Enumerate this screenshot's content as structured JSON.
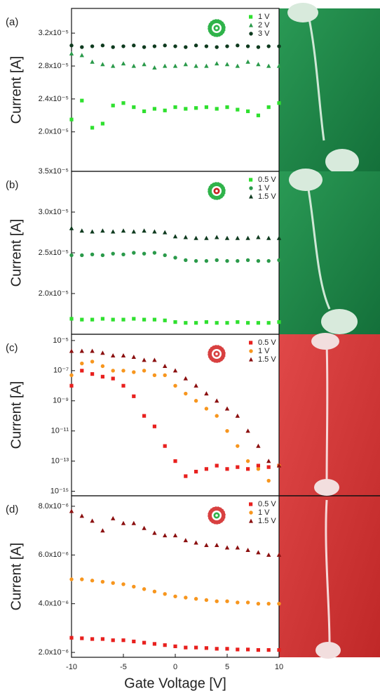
{
  "chart_data": [
    {
      "type": "scatter",
      "panel": "(a)",
      "ylabel": "Current [A]",
      "xlim": [
        -10,
        10
      ],
      "x": [
        -10,
        -9,
        -8,
        -7,
        -6,
        -5,
        -4,
        -3,
        -2,
        -1,
        0,
        1,
        2,
        3,
        4,
        5,
        6,
        7,
        8,
        9,
        10
      ],
      "ylim": [
        1.52e-05,
        3.5e-05
      ],
      "yticks": [
        {
          "value": 2e-05,
          "label": "2.0x10⁻⁵"
        },
        {
          "value": 2.4e-05,
          "label": "2.4x10⁻⁵"
        },
        {
          "value": 2.8e-05,
          "label": "2.8x10⁻⁵"
        },
        {
          "value": 3.2e-05,
          "label": "3.2x10⁻⁵"
        }
      ],
      "series": [
        {
          "name": "1 V",
          "color": "#2fe02f",
          "marker": "square",
          "values": [
            2.15e-05,
            2.38e-05,
            2.05e-05,
            2.1e-05,
            2.32e-05,
            2.35e-05,
            2.3e-05,
            2.25e-05,
            2.28e-05,
            2.26e-05,
            2.3e-05,
            2.28e-05,
            2.29e-05,
            2.3e-05,
            2.28e-05,
            2.3e-05,
            2.27e-05,
            2.25e-05,
            2.2e-05,
            2.3e-05,
            2.35e-05
          ]
        },
        {
          "name": "2 V",
          "color": "#2a9a4a",
          "marker": "triangle",
          "values": [
            2.95e-05,
            2.93e-05,
            2.85e-05,
            2.82e-05,
            2.8e-05,
            2.83e-05,
            2.8e-05,
            2.82e-05,
            2.78e-05,
            2.8e-05,
            2.8e-05,
            2.82e-05,
            2.8e-05,
            2.8e-05,
            2.83e-05,
            2.82e-05,
            2.8e-05,
            2.85e-05,
            2.82e-05,
            2.8e-05,
            2.8e-05
          ]
        },
        {
          "name": "3 V",
          "color": "#0e3a1e",
          "marker": "circle",
          "values": [
            3.05e-05,
            3.03e-05,
            3.04e-05,
            3.05e-05,
            3.03e-05,
            3.04e-05,
            3.05e-05,
            3.03e-05,
            3.04e-05,
            3.05e-05,
            3.04e-05,
            3.03e-05,
            3.05e-05,
            3.04e-05,
            3.03e-05,
            3.04e-05,
            3.05e-05,
            3.04e-05,
            3.03e-05,
            3.04e-05,
            3.04e-05
          ]
        }
      ]
    },
    {
      "type": "scatter",
      "panel": "(b)",
      "ylabel": "Current [A]",
      "xlim": [
        -10,
        10
      ],
      "x": [
        -10,
        -9,
        -8,
        -7,
        -6,
        -5,
        -4,
        -3,
        -2,
        -1,
        0,
        1,
        2,
        3,
        4,
        5,
        6,
        7,
        8,
        9,
        10
      ],
      "ylim": [
        1.5e-05,
        3.5e-05
      ],
      "yticks": [
        {
          "value": 2e-05,
          "label": "2.0x10⁻⁵"
        },
        {
          "value": 2.5e-05,
          "label": "2.5x10⁻⁵"
        },
        {
          "value": 3e-05,
          "label": "3.0x10⁻⁵"
        },
        {
          "value": 3.5e-05,
          "label": "3.5x10⁻⁵"
        }
      ],
      "series": [
        {
          "name": "0.5 V",
          "color": "#2fe02f",
          "marker": "square",
          "values": [
            1.69e-05,
            1.68e-05,
            1.68e-05,
            1.69e-05,
            1.68e-05,
            1.68e-05,
            1.69e-05,
            1.68e-05,
            1.68e-05,
            1.67e-05,
            1.65e-05,
            1.64e-05,
            1.64e-05,
            1.65e-05,
            1.64e-05,
            1.64e-05,
            1.65e-05,
            1.64e-05,
            1.64e-05,
            1.64e-05,
            1.65e-05
          ]
        },
        {
          "name": "1 V",
          "color": "#2a9a4a",
          "marker": "circle",
          "values": [
            2.47e-05,
            2.47e-05,
            2.48e-05,
            2.47e-05,
            2.49e-05,
            2.48e-05,
            2.5e-05,
            2.49e-05,
            2.5e-05,
            2.47e-05,
            2.44e-05,
            2.41e-05,
            2.4e-05,
            2.4e-05,
            2.41e-05,
            2.4e-05,
            2.4e-05,
            2.41e-05,
            2.4e-05,
            2.4e-05,
            2.41e-05
          ]
        },
        {
          "name": "1.5 V",
          "color": "#0e3a1e",
          "marker": "triangle",
          "values": [
            2.8e-05,
            2.77e-05,
            2.76e-05,
            2.77e-05,
            2.76e-05,
            2.77e-05,
            2.76e-05,
            2.77e-05,
            2.76e-05,
            2.75e-05,
            2.7e-05,
            2.69e-05,
            2.68e-05,
            2.68e-05,
            2.69e-05,
            2.68e-05,
            2.68e-05,
            2.68e-05,
            2.69e-05,
            2.68e-05,
            2.68e-05
          ]
        }
      ]
    },
    {
      "type": "scatter",
      "panel": "(c)",
      "ylabel": "Current [A]",
      "xlim": [
        -10,
        10
      ],
      "log": true,
      "x": [
        -10,
        -9,
        -8,
        -7,
        -6,
        -5,
        -4,
        -3,
        -2,
        -1,
        0,
        1,
        2,
        3,
        4,
        5,
        6,
        7,
        8,
        9,
        10
      ],
      "ylim": [
        5e-16,
        2.6e-05
      ],
      "yticks": [
        {
          "value": 1e-15,
          "label": "10⁻¹⁵"
        },
        {
          "value": 1e-13,
          "label": "10⁻¹³"
        },
        {
          "value": 1e-11,
          "label": "10⁻¹¹"
        },
        {
          "value": 1e-09,
          "label": "10⁻⁹"
        },
        {
          "value": 1e-07,
          "label": "10⁻⁷"
        },
        {
          "value": 1e-05,
          "label": "10⁻⁵"
        }
      ],
      "series": [
        {
          "name": "0.5 V",
          "color": "#e8201e",
          "marker": "square",
          "values": [
            1e-08,
            1e-07,
            6e-08,
            4e-08,
            3e-08,
            1e-08,
            2e-09,
            1e-10,
            2e-11,
            1e-12,
            1e-13,
            1e-14,
            2e-14,
            3e-14,
            5e-14,
            3e-14,
            4e-14,
            3e-14,
            5e-14,
            4e-14,
            5e-14
          ]
        },
        {
          "name": "1 V",
          "color": "#f7961e",
          "marker": "circle",
          "values": [
            5e-08,
            3e-07,
            4e-07,
            2e-07,
            1e-07,
            1e-07,
            8e-08,
            1e-07,
            5e-08,
            5e-08,
            1e-08,
            3e-09,
            1e-09,
            3e-10,
            1e-10,
            1e-11,
            1e-12,
            1e-13,
            3e-14,
            5e-15,
            5e-14
          ]
        },
        {
          "name": "1.5 V",
          "color": "#8b1010",
          "marker": "triangle",
          "values": [
            2e-06,
            2e-06,
            2e-06,
            1.5e-06,
            1e-06,
            1e-06,
            8e-07,
            5e-07,
            5e-07,
            2e-07,
            1e-07,
            3e-08,
            1e-08,
            3e-09,
            1e-09,
            3e-10,
            1e-10,
            1e-11,
            1e-12,
            1e-13,
            5e-14
          ]
        }
      ]
    },
    {
      "type": "scatter",
      "panel": "(d)",
      "ylabel": "Current [A]",
      "xlabel": "Gate Voltage [V]",
      "xlim": [
        -10,
        10
      ],
      "xticks": [
        -10,
        -5,
        0,
        5,
        10
      ],
      "x": [
        -10,
        -9,
        -8,
        -7,
        -6,
        -5,
        -4,
        -3,
        -2,
        -1,
        0,
        1,
        2,
        3,
        4,
        5,
        6,
        7,
        8,
        9,
        10
      ],
      "ylim": [
        1.8e-06,
        8.43e-06
      ],
      "yticks": [
        {
          "value": 2e-06,
          "label": "2.0x10⁻⁶"
        },
        {
          "value": 4e-06,
          "label": "4.0x10⁻⁶"
        },
        {
          "value": 6e-06,
          "label": "6.0x10⁻⁶"
        },
        {
          "value": 8e-06,
          "label": "8.0x10⁻⁶"
        }
      ],
      "series": [
        {
          "name": "0.5 V",
          "color": "#e8201e",
          "marker": "square",
          "values": [
            2.6e-06,
            2.58e-06,
            2.55e-06,
            2.55e-06,
            2.5e-06,
            2.5e-06,
            2.45e-06,
            2.4e-06,
            2.35e-06,
            2.3e-06,
            2.25e-06,
            2.2e-06,
            2.2e-06,
            2.18e-06,
            2.15e-06,
            2.15e-06,
            2.12e-06,
            2.12e-06,
            2.1e-06,
            2.1e-06,
            2.1e-06
          ]
        },
        {
          "name": "1 V",
          "color": "#f7961e",
          "marker": "circle",
          "values": [
            5e-06,
            5e-06,
            4.95e-06,
            4.9e-06,
            4.85e-06,
            4.8e-06,
            4.7e-06,
            4.6e-06,
            4.5e-06,
            4.4e-06,
            4.3e-06,
            4.25e-06,
            4.2e-06,
            4.15e-06,
            4.1e-06,
            4.1e-06,
            4.05e-06,
            4.05e-06,
            4e-06,
            4e-06,
            4e-06
          ]
        },
        {
          "name": "1.5 V",
          "color": "#8b1010",
          "marker": "triangle",
          "values": [
            7.8e-06,
            7.6e-06,
            7.4e-06,
            7e-06,
            7.5e-06,
            7.3e-06,
            7.3e-06,
            7.1e-06,
            6.9e-06,
            6.8e-06,
            6.8e-06,
            6.6e-06,
            6.5e-06,
            6.4e-06,
            6.4e-06,
            6.3e-06,
            6.3e-06,
            6.2e-06,
            6.1e-06,
            6e-06,
            6e-06
          ]
        }
      ]
    }
  ]
}
